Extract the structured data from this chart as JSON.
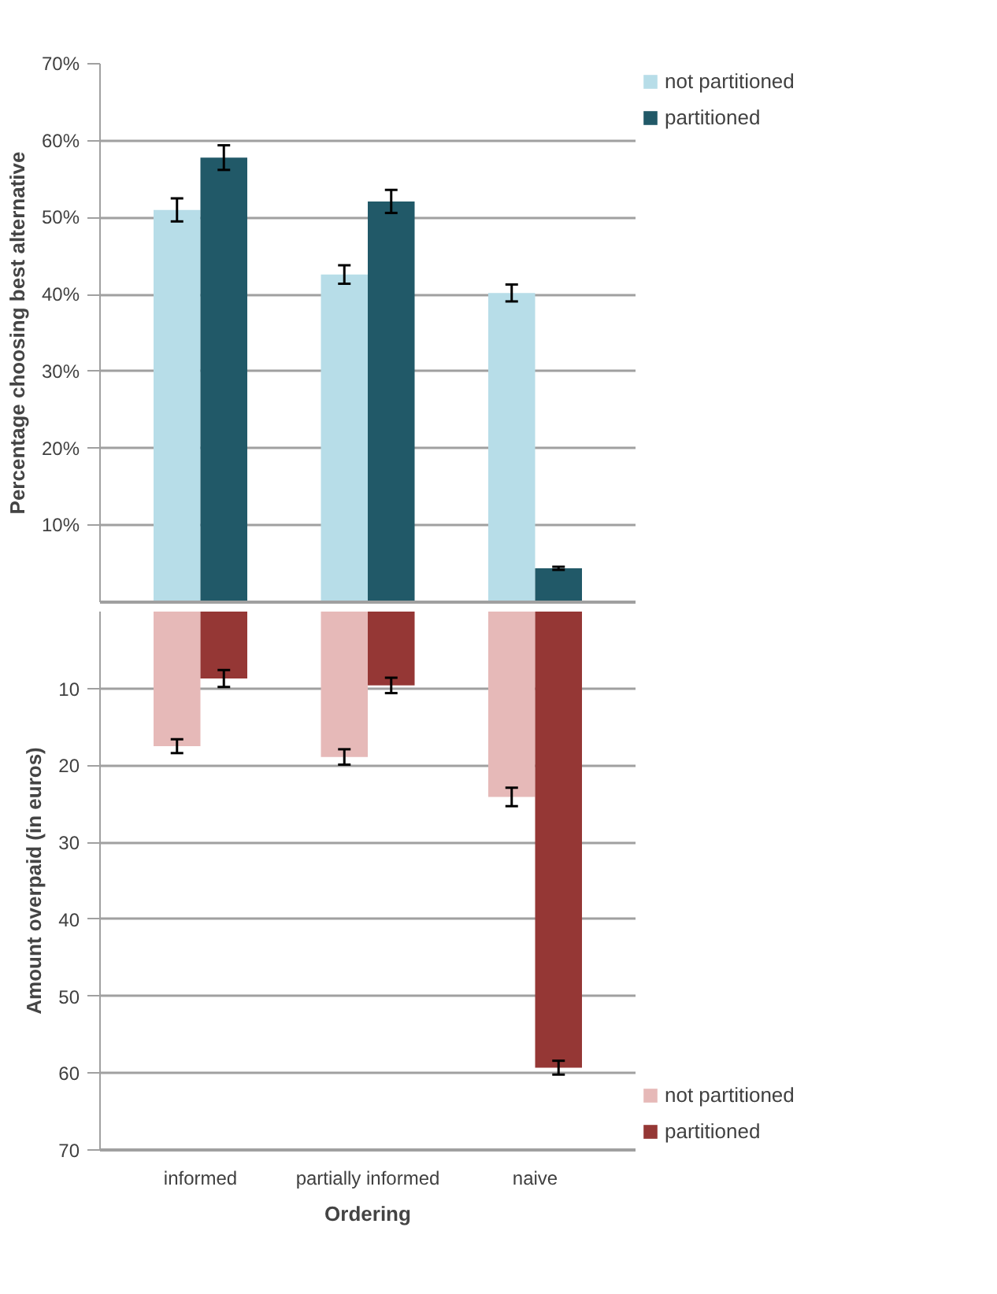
{
  "chart_data": [
    {
      "type": "bar",
      "ylabel": "Percentage choosing best alternative",
      "categories": [
        null,
        null,
        null
      ],
      "tick_labels": "y",
      "grid": "y",
      "legend": "right",
      "ylim": [
        0,
        70
      ],
      "yticks": [
        {
          "value": 10,
          "label": "10%"
        },
        {
          "value": 20,
          "label": "20%"
        },
        {
          "value": 30,
          "label": "30%"
        },
        {
          "value": 40,
          "label": "40%"
        },
        {
          "value": 50,
          "label": "50%"
        },
        {
          "value": 60,
          "label": "60%"
        },
        {
          "value": 70,
          "label": "70%"
        }
      ],
      "series": [
        {
          "name": "not partitioned",
          "color": "#b7dde8",
          "values": [
            51,
            42.6,
            40.2
          ],
          "errors": [
            1.5,
            1.2,
            1.1
          ]
        },
        {
          "name": "partitioned",
          "color": "#215968",
          "values": [
            57.8,
            52.1,
            4.4
          ],
          "errors": [
            1.6,
            1.5,
            0.2
          ]
        }
      ]
    },
    {
      "type": "bar",
      "ylabel": "Amount overpaid (in euros)",
      "xlabel": "Ordering",
      "categories": [
        "informed",
        "partially informed",
        "naive"
      ],
      "grid": "y",
      "legend": "right",
      "ylim": [
        70,
        0
      ],
      "yticks": [
        10,
        20,
        30,
        40,
        50,
        60,
        70
      ],
      "series": [
        {
          "name": "not partitioned",
          "color": "#e6b9b8",
          "values": [
            17.5,
            18.9,
            24.1
          ],
          "errors": [
            0.9,
            1.0,
            1.2
          ]
        },
        {
          "name": "partitioned",
          "color": "#953735",
          "values": [
            8.7,
            9.6,
            59.3
          ],
          "errors": [
            1.1,
            1.0,
            0.9
          ]
        }
      ]
    }
  ]
}
